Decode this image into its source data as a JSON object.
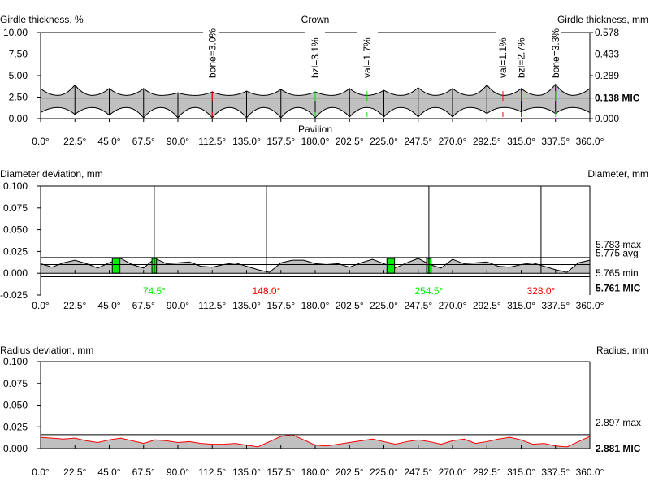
{
  "angle_labels": [
    "0.0°",
    "22.5°",
    "45.0°",
    "67.5°",
    "90.0°",
    "112.5°",
    "135.0°",
    "157.5°",
    "180.0°",
    "202.5°",
    "225.0°",
    "247.5°",
    "270.0°",
    "292.5°",
    "315.0°",
    "337.5°",
    "360.0°"
  ],
  "chart_data": [
    {
      "type": "area",
      "title": "Girdle thickness",
      "ylabel": "Girdle thickness, %",
      "ylabel_right": "Girdle thickness, mm",
      "top_label": "Crown",
      "bottom_label": "Pavilion",
      "ylim": [
        0,
        10
      ],
      "yticks": [
        "10.00",
        "7.50",
        "5.00",
        "2.50",
        "0.00"
      ],
      "yticks_right": [
        "0.578",
        "0.433",
        "0.289",
        "0.138 MIC",
        "0.000"
      ],
      "x": [
        0,
        22.5,
        45,
        67.5,
        90,
        112.5,
        135,
        157.5,
        180,
        202.5,
        225,
        247.5,
        270,
        292.5,
        315,
        337.5,
        360
      ],
      "upper_peaks": [
        3.5,
        3.9,
        3.5,
        3.5,
        3.0,
        3.1,
        3.2,
        3.4,
        3.1,
        3.5,
        3.3,
        3.6,
        3.5,
        3.9,
        3.5,
        4.0,
        3.5
      ],
      "lower_peaks": [
        0.7,
        0.5,
        0.4,
        0.1,
        0.1,
        0.1,
        0.1,
        0.1,
        0.1,
        0.2,
        0.2,
        0.2,
        0.2,
        0.6,
        0.8,
        0.6,
        0.7
      ],
      "upper_valley": 2.7,
      "lower_valley": 1.3,
      "mic": 2.39,
      "annotations": [
        {
          "text": "bone=3.0%",
          "x": 112.5,
          "color": "#ff0000"
        },
        {
          "text": "bzl=3.1%",
          "x": 180,
          "color": "#00dd00"
        },
        {
          "text": "val=1.7%",
          "x": 214,
          "color": "#00dd00"
        },
        {
          "text": "val=1.1%",
          "x": 303,
          "color": "#ff0000"
        },
        {
          "text": "bzl=2.7%",
          "x": 315,
          "color": "#ff0000"
        },
        {
          "text": "bone=3.3%",
          "x": 337.5,
          "color": "#00dd00"
        }
      ]
    },
    {
      "type": "area",
      "title": "Diameter deviation",
      "ylabel": "Diameter deviation, mm",
      "ylabel_right": "Diameter, mm",
      "ylim": [
        -0.025,
        0.1
      ],
      "yticks": [
        "0.100",
        "0.075",
        "0.050",
        "0.025",
        "0.000",
        "-0.025"
      ],
      "right_labels": [
        {
          "text": "5.783 max",
          "v": 0.018
        },
        {
          "text": "5.775 avg",
          "v": 0.01
        },
        {
          "text": "5.765 min",
          "v": 0.0
        },
        {
          "text": "5.761 MIC",
          "v": -0.004
        }
      ],
      "x_step": 7.5,
      "values": [
        0.011,
        0.007,
        0.012,
        0.015,
        0.011,
        0.006,
        0.012,
        0.017,
        0.01,
        0.006,
        0.017,
        0.011,
        0.012,
        0.013,
        0.008,
        0.007,
        0.01,
        0.012,
        0.008,
        0.004,
        0.001,
        0.012,
        0.015,
        0.015,
        0.011,
        0.01,
        0.011,
        0.007,
        0.012,
        0.016,
        0.011,
        0.006,
        0.012,
        0.017,
        0.01,
        0.006,
        0.016,
        0.011,
        0.012,
        0.013,
        0.008,
        0.007,
        0.01,
        0.012,
        0.008,
        0.004,
        0.001,
        0.012,
        0.015
      ],
      "markers": [
        {
          "text": "74.5°",
          "x": 74.5,
          "color": "#00ee00"
        },
        {
          "text": "148.0°",
          "x": 148,
          "color": "#ff0000"
        },
        {
          "text": "254.5°",
          "x": 254.5,
          "color": "#00ee00"
        },
        {
          "text": "328.0°",
          "x": 328,
          "color": "#ff0000"
        }
      ],
      "green_bars": [
        [
          47,
          52
        ],
        [
          73,
          76
        ],
        [
          227,
          232
        ],
        [
          253,
          256
        ]
      ]
    },
    {
      "type": "area",
      "title": "Radius deviation",
      "ylabel": "Radius deviation, mm",
      "ylabel_right": "Radius, mm",
      "ylim": [
        0,
        0.1
      ],
      "yticks": [
        "0.100",
        "0.075",
        "0.050",
        "0.025",
        "0.000"
      ],
      "right_labels": [
        {
          "text": "2.897 max",
          "v": 0.016
        },
        {
          "text": "2.881 MIC",
          "v": 0.0
        }
      ],
      "x_step": 7.5,
      "values": [
        0.013,
        0.012,
        0.011,
        0.012,
        0.009,
        0.007,
        0.01,
        0.012,
        0.009,
        0.006,
        0.01,
        0.009,
        0.007,
        0.008,
        0.006,
        0.005,
        0.005,
        0.006,
        0.004,
        0.002,
        0.008,
        0.014,
        0.016,
        0.01,
        0.004,
        0.003,
        0.005,
        0.007,
        0.009,
        0.011,
        0.008,
        0.005,
        0.008,
        0.01,
        0.008,
        0.005,
        0.009,
        0.011,
        0.006,
        0.008,
        0.011,
        0.013,
        0.01,
        0.005,
        0.006,
        0.003,
        0.002,
        0.008,
        0.014
      ]
    }
  ]
}
